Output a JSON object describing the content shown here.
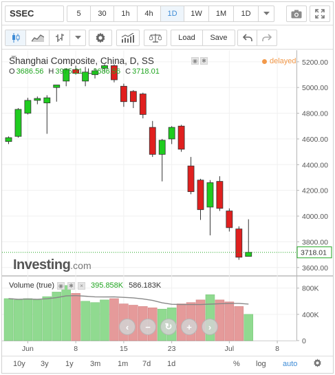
{
  "toolbar": {
    "symbol": "SSEC",
    "intervals": [
      {
        "label": "5",
        "active": false
      },
      {
        "label": "30",
        "active": false
      },
      {
        "label": "1h",
        "active": false
      },
      {
        "label": "4h",
        "active": false
      },
      {
        "label": "1D",
        "active": true
      },
      {
        "label": "1W",
        "active": false
      },
      {
        "label": "1M",
        "active": false
      },
      {
        "label": "1D",
        "active": false
      }
    ],
    "load_label": "Load",
    "save_label": "Save"
  },
  "legend": {
    "title": "Shanghai Composite, China, D, SS",
    "open_key": "O",
    "open": "3686.56",
    "high_key": "H",
    "high": "3975.21",
    "low_key": "L",
    "low": "3686.56",
    "close_key": "C",
    "close": "3718.01",
    "status": "delayed"
  },
  "logo": {
    "main": "Investing",
    "suffix": ".com"
  },
  "volume": {
    "label": "Volume (true)",
    "value1": "395.858K",
    "value2": "586.183K"
  },
  "colors": {
    "up": "#1fcc1f",
    "down": "#e0201f",
    "vol_up": "#90da90",
    "vol_down": "#e59a9a",
    "accent": "#3d8bd6",
    "last_price": "#1fa51f"
  },
  "chart_data": {
    "type": "candlestick",
    "title": "Shanghai Composite, China, D, SS",
    "price_axis": {
      "ticks": [
        3600,
        3800,
        4000,
        4200,
        4400,
        4600,
        4800,
        5000,
        5200
      ],
      "range": [
        3540,
        5290
      ]
    },
    "volume_axis": {
      "ticks": [
        "0",
        "400K",
        "800K"
      ],
      "max": 860
    },
    "last_price": "3718.01",
    "x_labels": [
      {
        "label": "Jun",
        "index": 2
      },
      {
        "label": "8",
        "index": 7
      },
      {
        "label": "15",
        "index": 12
      },
      {
        "label": "23",
        "index": 17
      },
      {
        "label": "Jul",
        "index": 23
      },
      {
        "label": "8",
        "index": 28
      }
    ],
    "candles": [
      {
        "o": 4580,
        "h": 4620,
        "l": 4560,
        "c": 4610
      },
      {
        "o": 4620,
        "h": 4840,
        "l": 4610,
        "c": 4830
      },
      {
        "o": 4800,
        "h": 4920,
        "l": 4790,
        "c": 4900
      },
      {
        "o": 4900,
        "h": 4930,
        "l": 4870,
        "c": 4915
      },
      {
        "o": 4880,
        "h": 4940,
        "l": 4640,
        "c": 4920
      },
      {
        "o": 5000,
        "h": 5020,
        "l": 4890,
        "c": 5020
      },
      {
        "o": 5050,
        "h": 5150,
        "l": 5010,
        "c": 5140
      },
      {
        "o": 5140,
        "h": 5170,
        "l": 5100,
        "c": 5110
      },
      {
        "o": 5050,
        "h": 5160,
        "l": 5010,
        "c": 5120
      },
      {
        "o": 5100,
        "h": 5150,
        "l": 5070,
        "c": 5130
      },
      {
        "o": 5150,
        "h": 5180,
        "l": 5120,
        "c": 5170
      },
      {
        "o": 5170,
        "h": 5180,
        "l": 5040,
        "c": 5060
      },
      {
        "o": 5010,
        "h": 5030,
        "l": 4850,
        "c": 4890
      },
      {
        "o": 4970,
        "h": 4980,
        "l": 4840,
        "c": 4890
      },
      {
        "o": 4950,
        "h": 4960,
        "l": 4760,
        "c": 4790
      },
      {
        "o": 4690,
        "h": 4740,
        "l": 4460,
        "c": 4480
      },
      {
        "o": 4480,
        "h": 4600,
        "l": 4270,
        "c": 4590
      },
      {
        "o": 4600,
        "h": 4700,
        "l": 4560,
        "c": 4690
      },
      {
        "o": 4700,
        "h": 4710,
        "l": 4500,
        "c": 4520
      },
      {
        "o": 4390,
        "h": 4460,
        "l": 4170,
        "c": 4190
      },
      {
        "o": 4280,
        "h": 4290,
        "l": 3970,
        "c": 4050
      },
      {
        "o": 4070,
        "h": 4280,
        "l": 3850,
        "c": 4260
      },
      {
        "o": 4270,
        "h": 4310,
        "l": 4040,
        "c": 4060
      },
      {
        "o": 4040,
        "h": 4060,
        "l": 3880,
        "c": 3910
      },
      {
        "o": 3900,
        "h": 3920,
        "l": 3660,
        "c": 3680
      },
      {
        "o": 3686.56,
        "h": 3975.21,
        "l": 3686.56,
        "c": 3718.01
      }
    ],
    "volumes": [
      640,
      620,
      640,
      620,
      670,
      740,
      840,
      720,
      600,
      580,
      620,
      640,
      560,
      540,
      520,
      500,
      480,
      500,
      560,
      580,
      620,
      700,
      620,
      590,
      520,
      400
    ]
  },
  "bottom": {
    "ranges": [
      "10y",
      "3y",
      "1y",
      "3m",
      "1m",
      "7d",
      "1d"
    ],
    "percent": "%",
    "log": "log",
    "auto": "auto"
  }
}
